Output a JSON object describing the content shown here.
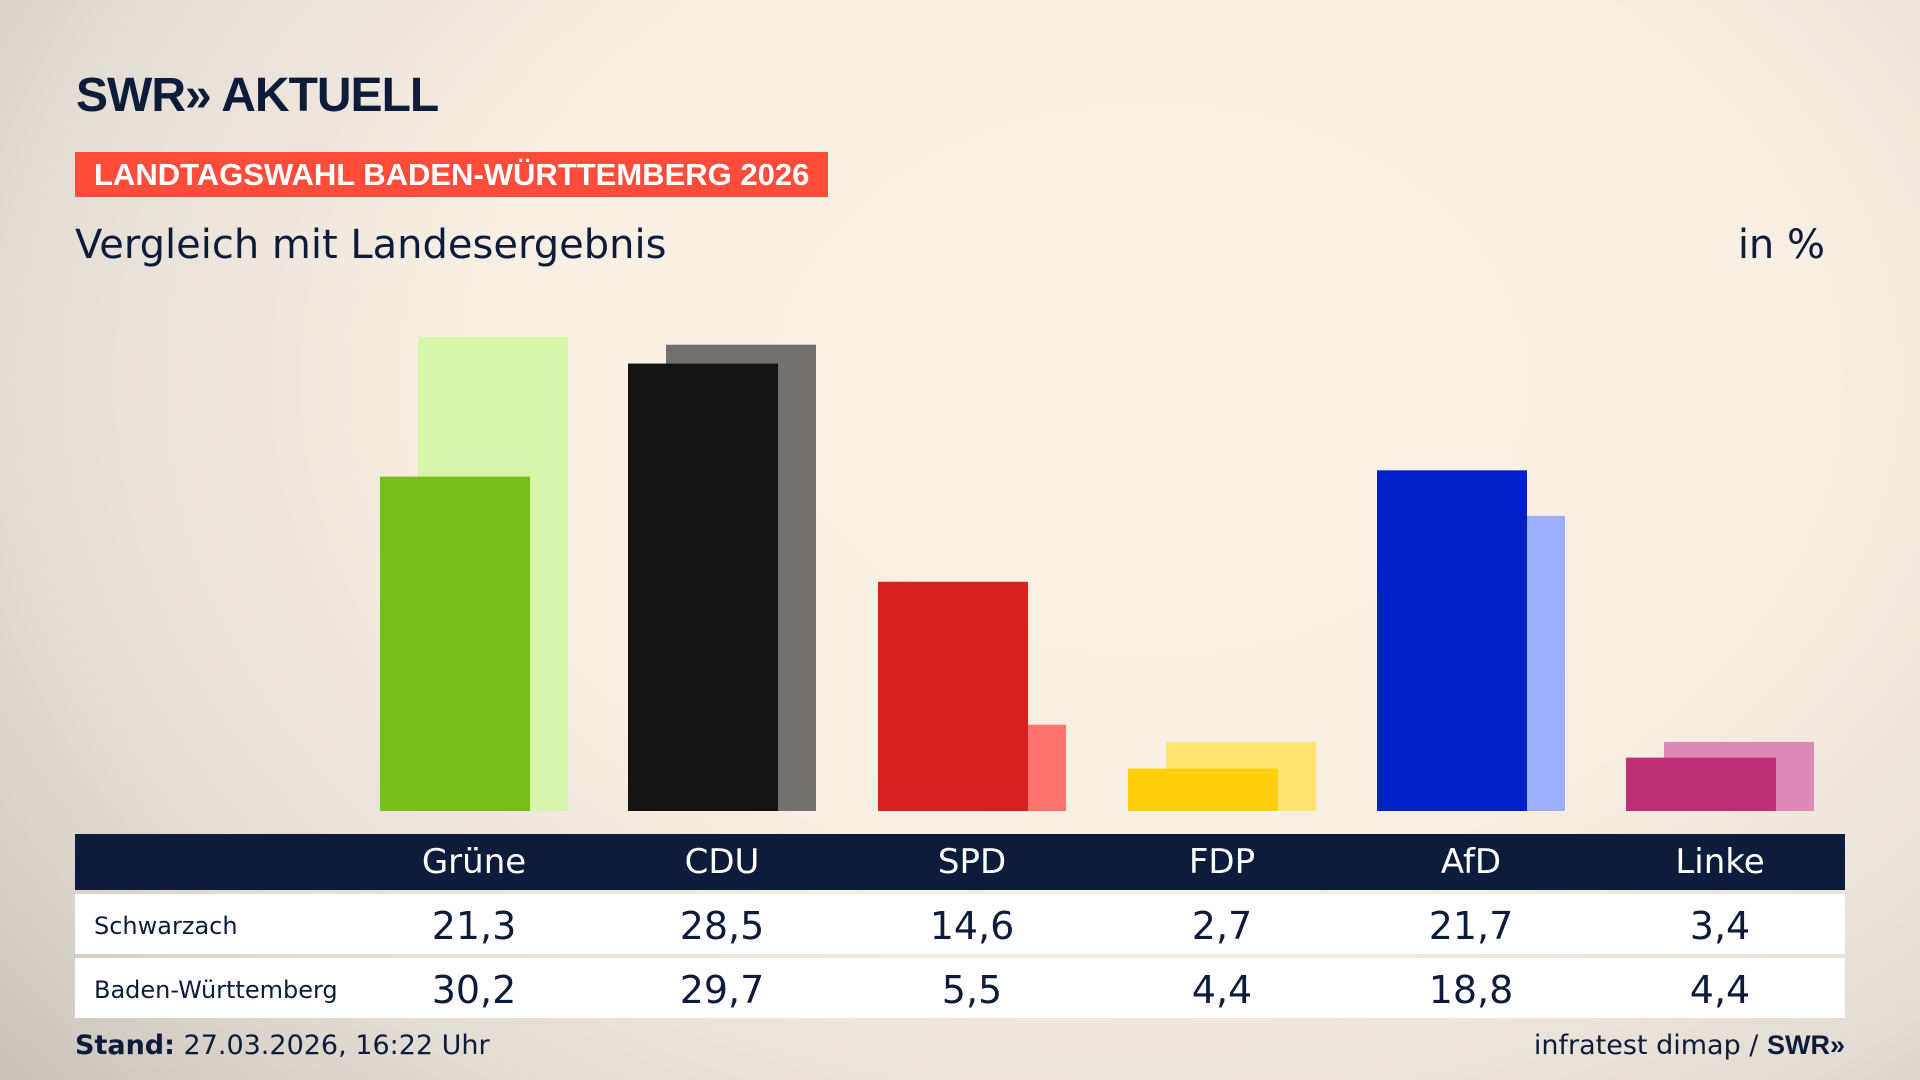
{
  "header": {
    "logo": "SWR» AKTUELL",
    "banner": "LANDTAGSWAHL BADEN-WÜRTTEMBERG 2026",
    "subtitle": "Vergleich mit Landesergebnis",
    "unit": "in %"
  },
  "chart_data": {
    "type": "bar",
    "categories": [
      "Grüne",
      "CDU",
      "SPD",
      "FDP",
      "AfD",
      "Linke"
    ],
    "series": [
      {
        "name": "Schwarzach",
        "values": [
          21.3,
          28.5,
          14.6,
          2.7,
          21.7,
          3.4
        ]
      },
      {
        "name": "Baden-Württemberg",
        "values": [
          30.2,
          29.7,
          5.5,
          4.4,
          18.8,
          4.4
        ]
      }
    ],
    "colors": {
      "Schwarzach": [
        "#78be1b",
        "#141414",
        "#d7201f",
        "#ffd00d",
        "#0021c7",
        "#be3075"
      ],
      "Baden-Württemberg": [
        "#d7f5ab",
        "#737170",
        "#ff7370",
        "#ffe46e",
        "#9eaeff",
        "#de8ab8"
      ]
    },
    "display_values": {
      "Schwarzach": [
        "21,3",
        "28,5",
        "14,6",
        "2,7",
        "21,7",
        "3,4"
      ],
      "Baden-Württemberg": [
        "30,2",
        "29,7",
        "5,5",
        "4,4",
        "18,8",
        "4,4"
      ]
    }
  },
  "footer": {
    "stand_label": "Stand:",
    "stand_value": "27.03.2026, 16:22 Uhr",
    "source": "infratest dimap / ",
    "source_logo": "SWR»"
  }
}
